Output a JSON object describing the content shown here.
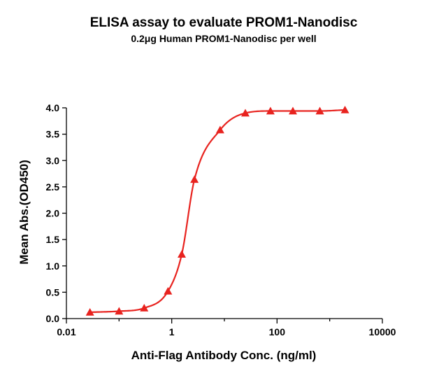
{
  "chart_data": {
    "type": "scatter",
    "title": "ELISA assay to evaluate PROM1-Nanodisc",
    "subtitle": "0.2μg Human PROM1-Nanodisc per well",
    "xlabel": "Anti-Flag Antibody Conc. (ng/ml)",
    "ylabel": "Mean Abs.(OD450)",
    "x_scale": "log",
    "xlim": [
      0.01,
      10000
    ],
    "ylim": [
      0.0,
      4.0
    ],
    "x_ticks": [
      {
        "value": 0.01,
        "label": "0.01"
      },
      {
        "value": 1,
        "label": "1"
      },
      {
        "value": 100,
        "label": "100"
      },
      {
        "value": 10000,
        "label": "10000"
      }
    ],
    "y_ticks": [
      {
        "value": 0.0,
        "label": "0.0"
      },
      {
        "value": 0.5,
        "label": "0.5"
      },
      {
        "value": 1.0,
        "label": "1.0"
      },
      {
        "value": 1.5,
        "label": "1.5"
      },
      {
        "value": 2.0,
        "label": "2.0"
      },
      {
        "value": 2.5,
        "label": "2.5"
      },
      {
        "value": 3.0,
        "label": "3.0"
      },
      {
        "value": 3.5,
        "label": "3.5"
      },
      {
        "value": 4.0,
        "label": "4.0"
      }
    ],
    "grid": false,
    "legend": "none",
    "color": "#e8231f",
    "marker": "triangle",
    "fit": "four-parameter-logistic",
    "series": [
      {
        "x": [
          0.028,
          0.1,
          0.3,
          0.85,
          1.55,
          2.7,
          8.3,
          25,
          75,
          200,
          650,
          1950
        ],
        "y": [
          0.12,
          0.14,
          0.2,
          0.52,
          1.22,
          2.64,
          3.58,
          3.9,
          3.94,
          3.94,
          3.94,
          3.96
        ]
      }
    ]
  }
}
